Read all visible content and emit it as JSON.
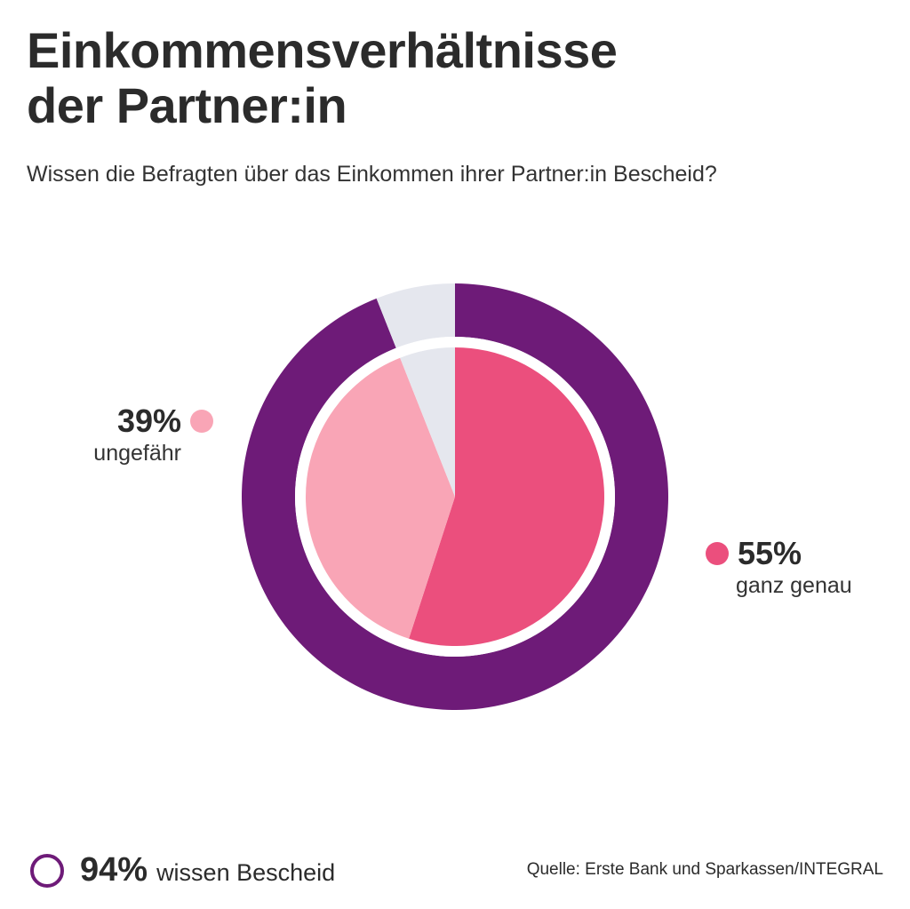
{
  "title_line1": "Einkommensverhältnisse",
  "title_line2": "der Partner:in",
  "subtitle": "Wissen die Befragten über das Einkommen ihrer Partner:in Bescheid?",
  "source": "Quelle: Erste Bank und Sparkassen/INTEGRAL",
  "colors": {
    "outer_know": "#6e1b78",
    "outer_rest": "#e5e7ee",
    "exact": "#eb4f7d",
    "approx": "#f9a5b6",
    "rest": "#e5e7ee"
  },
  "chart_data": {
    "type": "pie",
    "inner": {
      "slices": [
        {
          "name": "ganz genau",
          "value": 55,
          "label": "55%",
          "color": "#eb4f7d"
        },
        {
          "name": "ungefähr",
          "value": 39,
          "label": "39%",
          "color": "#f9a5b6"
        },
        {
          "name": "",
          "value": 6,
          "label": "",
          "color": "#e5e7ee"
        }
      ]
    },
    "outer": {
      "slices": [
        {
          "name": "wissen Bescheid",
          "value": 94,
          "label": "94%",
          "color": "#6e1b78"
        },
        {
          "name": "",
          "value": 6,
          "label": "",
          "color": "#e5e7ee"
        }
      ]
    }
  },
  "labels": {
    "exact_pct": "55%",
    "exact_text": "ganz genau",
    "approx_pct": "39%",
    "approx_text": "ungefähr",
    "total_pct": "94%",
    "total_text": "wissen Bescheid"
  }
}
